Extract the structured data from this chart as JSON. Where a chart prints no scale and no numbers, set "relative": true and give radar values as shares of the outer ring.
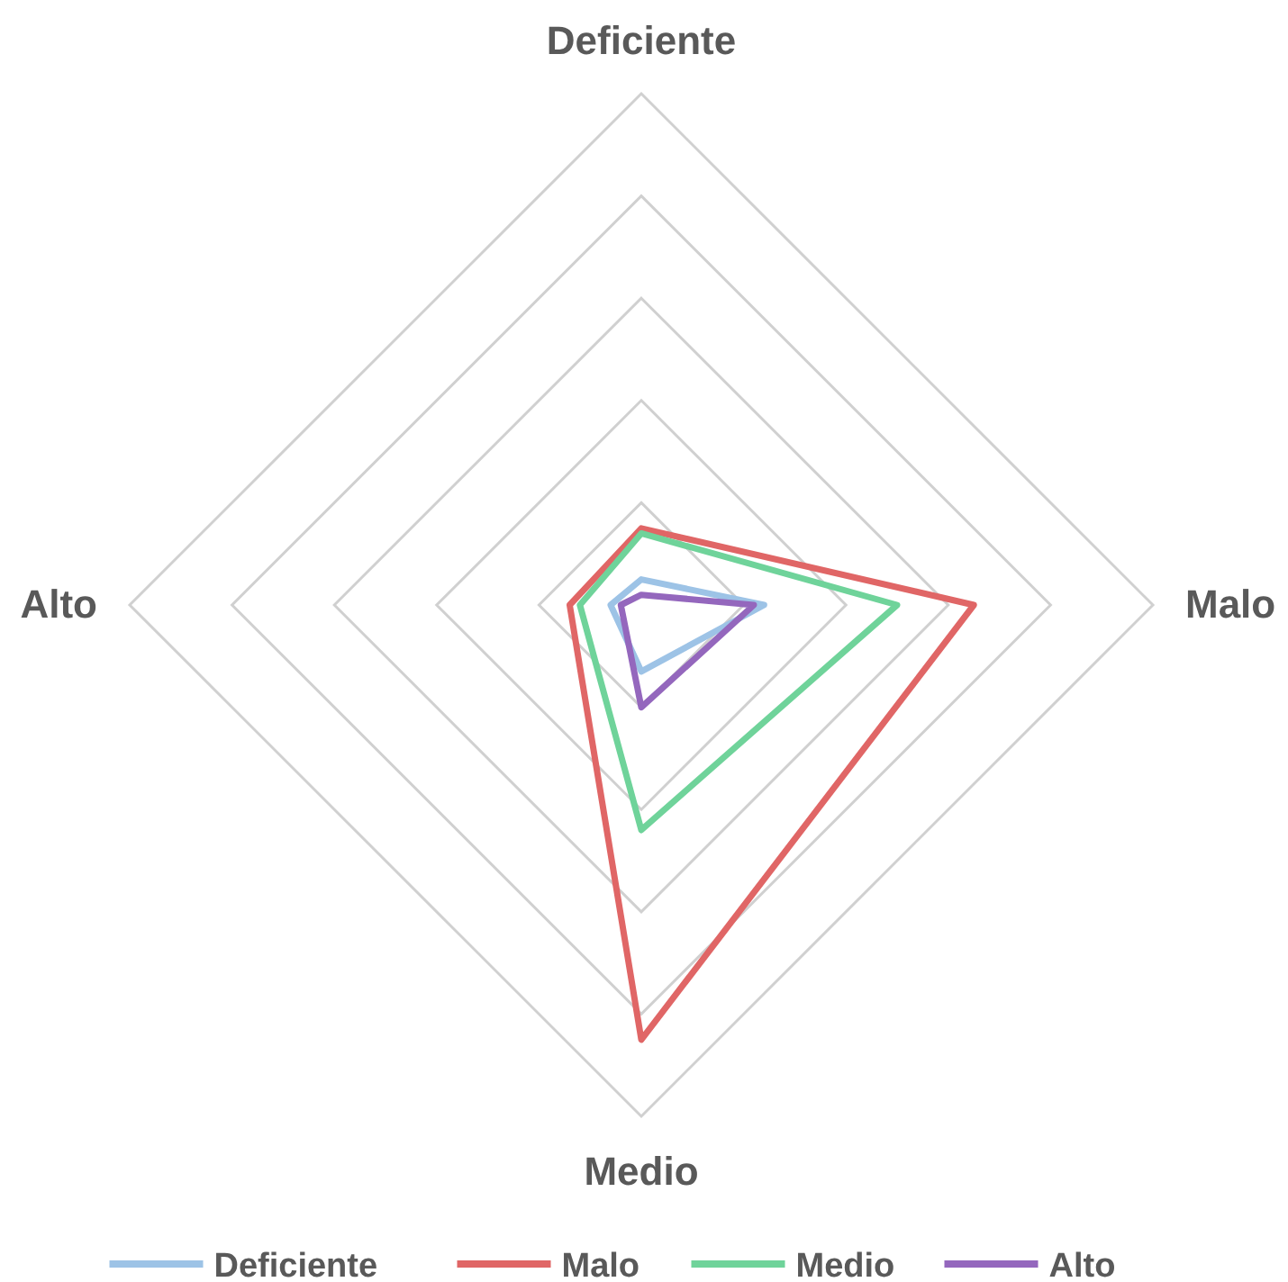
{
  "chart_data": {
    "type": "radar",
    "relative": true,
    "categories": [
      "Deficiente",
      "Malo",
      "Medio",
      "Alto"
    ],
    "series": [
      {
        "name": "Deficiente",
        "color": "#9dc3e6",
        "values": [
          0.05,
          0.24,
          0.13,
          0.06
        ]
      },
      {
        "name": "Malo",
        "color": "#e06666",
        "values": [
          0.15,
          0.65,
          0.85,
          0.14
        ]
      },
      {
        "name": "Medio",
        "color": "#6fd39a",
        "values": [
          0.14,
          0.5,
          0.44,
          0.12
        ]
      },
      {
        "name": "Alto",
        "color": "#9467bd",
        "values": [
          0.02,
          0.22,
          0.2,
          0.04
        ]
      }
    ],
    "grid": true,
    "legend": "bottom"
  }
}
